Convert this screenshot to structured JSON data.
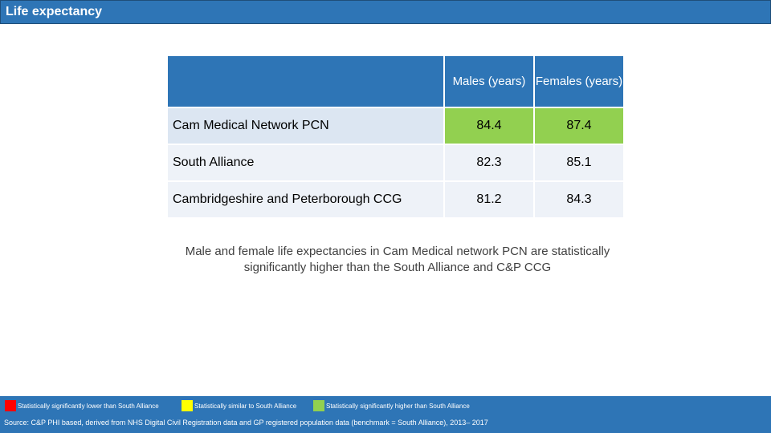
{
  "header": {
    "title": "Life expectancy"
  },
  "table": {
    "columns": [
      "Males (years)",
      "Females (years)"
    ],
    "rows": [
      {
        "label": "Cam Medical Network PCN",
        "males": "84.4",
        "females": "87.4",
        "status": "significantly higher"
      },
      {
        "label": "South Alliance",
        "males": "82.3",
        "females": "85.1",
        "status": "benchmark"
      },
      {
        "label": "Cambridgeshire and Peterborough CCG",
        "males": "81.2",
        "females": "84.3",
        "status": "benchmark"
      }
    ]
  },
  "note": "Male and female life expectancies in Cam Medical network PCN are statistically significantly higher than the South Alliance and C&P CCG",
  "legend": [
    {
      "label": "Statistically significantly lower than South Alliance",
      "color": "#ff0000"
    },
    {
      "label": "Statistically similar to South Alliance",
      "color": "#ffff00"
    },
    {
      "label": "Statistically significantly higher than South Alliance",
      "color": "#92d050"
    }
  ],
  "footer": {
    "source": "Source: C&P PHI based, derived from NHS Digital Civil Registration data and GP registered population data (benchmark = South Alliance), 2013– 2017"
  }
}
